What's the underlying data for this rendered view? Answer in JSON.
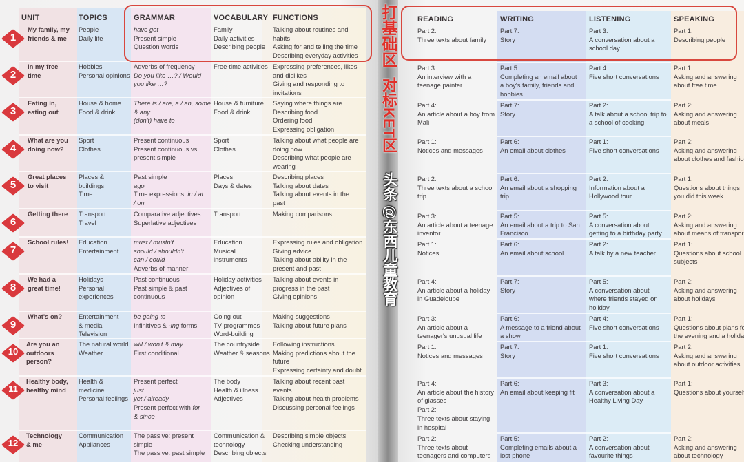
{
  "left_page": {
    "headers": {
      "unit": "UNIT",
      "topics": "TOPICS",
      "grammar": "GRAMMAR",
      "vocabulary": "VOCABULARY",
      "functions": "FUNCTIONS"
    },
    "units": [
      {
        "number": "1",
        "title": [
          "My family, my",
          "friends & me"
        ],
        "topics": [
          "People",
          "Daily life"
        ],
        "grammar": [
          [
            {
              "t": "have got",
              "em": true
            }
          ],
          "Present simple",
          "Question words"
        ],
        "vocabulary": [
          "Family",
          "Daily activities",
          "Describing people"
        ],
        "functions": [
          "Talking about routines and",
          "habits",
          "Asking for and telling the time",
          "Describing everyday activities"
        ]
      },
      {
        "number": "2",
        "title": [
          "In my free",
          "time"
        ],
        "topics": [
          "Hobbies",
          "Personal opinions"
        ],
        "grammar": [
          "Adverbs of frequency",
          [
            {
              "t": "Do you like …? / Would",
              "em": true
            }
          ],
          [
            {
              "t": "you like …?",
              "em": true
            }
          ]
        ],
        "vocabulary": [
          "Free-time activities"
        ],
        "functions": [
          "Expressing preferences, likes",
          "and dislikes",
          "Giving and responding to",
          "invitations"
        ]
      },
      {
        "number": "3",
        "title": [
          "Eating in,",
          "eating out"
        ],
        "topics": [
          "House & home",
          "Food & drink"
        ],
        "grammar": [
          [
            {
              "t": "There is / are, a / an, some",
              "em": true
            }
          ],
          [
            {
              "t": "& any",
              "em": true
            }
          ],
          [
            {
              "t": "(don't) have to",
              "em": true
            }
          ]
        ],
        "vocabulary": [
          "House & furniture",
          "Food & drink"
        ],
        "functions": [
          "Saying where things are",
          "Describing food",
          "Ordering food",
          "Expressing obligation"
        ]
      },
      {
        "number": "4",
        "title": [
          "What are you",
          "doing now?"
        ],
        "topics": [
          "Sport",
          "Clothes"
        ],
        "grammar": [
          "Present continuous",
          "Present continuous vs",
          "present simple"
        ],
        "vocabulary": [
          "Sport",
          "Clothes"
        ],
        "functions": [
          "Talking about what people are",
          "doing now",
          "Describing what people are",
          "wearing"
        ]
      },
      {
        "number": "5",
        "title": [
          "Great places",
          "to visit"
        ],
        "topics": [
          "Places &",
          "buildings",
          "Time"
        ],
        "grammar": [
          "Past simple",
          [
            {
              "t": "ago",
              "em": true
            }
          ],
          [
            {
              "t": "Time expressions: "
            },
            {
              "t": "in / at",
              "em": true
            }
          ],
          [
            {
              "t": "/ on",
              "em": true
            }
          ]
        ],
        "vocabulary": [
          "Places",
          "Days & dates"
        ],
        "functions": [
          "Describing places",
          "Talking about dates",
          "Talking about events in the",
          "past"
        ]
      },
      {
        "number": "6",
        "title": [
          "Getting there"
        ],
        "topics": [
          "Transport",
          "Travel"
        ],
        "grammar": [
          "Comparative adjectives",
          "Superlative adjectives"
        ],
        "vocabulary": [
          "Transport"
        ],
        "functions": [
          "Making comparisons"
        ]
      },
      {
        "number": "7",
        "title": [
          "School rules!"
        ],
        "topics": [
          "Education",
          "Entertainment"
        ],
        "grammar": [
          [
            {
              "t": "must / mustn't",
              "em": true
            }
          ],
          [
            {
              "t": "should / shouldn't",
              "em": true
            }
          ],
          [
            {
              "t": "can / could",
              "em": true
            }
          ],
          "Adverbs of manner"
        ],
        "vocabulary": [
          "Education",
          "Musical",
          "instruments"
        ],
        "functions": [
          "Expressing rules and obligation",
          "Giving advice",
          "Talking about ability in the",
          "present and past"
        ]
      },
      {
        "number": "8",
        "title": [
          "We had a",
          "great time!"
        ],
        "topics": [
          "Holidays",
          "Personal",
          "experiences"
        ],
        "grammar": [
          "Past continuous",
          "Past simple & past",
          "continuous"
        ],
        "vocabulary": [
          "Holiday activities",
          "Adjectives of",
          "opinion"
        ],
        "functions": [
          "Talking about events in",
          "progress in the past",
          "Giving opinions"
        ]
      },
      {
        "number": "9",
        "title": [
          "What's on?"
        ],
        "topics": [
          "Entertainment",
          "& media",
          "Television"
        ],
        "grammar": [
          [
            {
              "t": "be going to",
              "em": true
            }
          ],
          [
            {
              "t": "Infinitives & "
            },
            {
              "t": "-ing",
              "em": true
            },
            {
              "t": " forms"
            }
          ]
        ],
        "vocabulary": [
          "Going out",
          "TV programmes",
          "Word-building"
        ],
        "functions": [
          "Making suggestions",
          "Talking about future plans"
        ]
      },
      {
        "number": "10",
        "title": [
          "Are you an",
          "outdoors",
          "person?"
        ],
        "topics": [
          "The natural world",
          "Weather"
        ],
        "grammar": [
          [
            {
              "t": "will / won't & may",
              "em": true
            }
          ],
          "First conditional"
        ],
        "vocabulary": [
          "The countryside",
          "Weather & seasons"
        ],
        "functions": [
          "Following instructions",
          "Making predictions about the",
          "future",
          "Expressing certainty and doubt"
        ]
      },
      {
        "number": "11",
        "title": [
          "Healthy body,",
          "healthy mind"
        ],
        "topics": [
          "Health &",
          "medicine",
          "Personal feelings"
        ],
        "grammar": [
          "Present perfect",
          [
            {
              "t": "just",
              "em": true
            }
          ],
          [
            {
              "t": "yet / already",
              "em": true
            }
          ],
          [
            {
              "t": "Present perfect with "
            },
            {
              "t": "for",
              "em": true
            }
          ],
          [
            {
              "t": "& since",
              "em": true
            }
          ]
        ],
        "vocabulary": [
          "The body",
          "Health & illness",
          "Adjectives"
        ],
        "functions": [
          "Talking about recent past",
          "events",
          "Talking about health problems",
          "Discussing personal feelings"
        ]
      },
      {
        "number": "12",
        "title": [
          "Technology",
          "& me"
        ],
        "topics": [
          "Communication",
          "Appliances"
        ],
        "grammar": [
          "The passive: present",
          "simple",
          "The passive: past simple"
        ],
        "vocabulary": [
          "Communication &",
          "technology",
          "Describing objects"
        ],
        "functions": [
          "Describing simple objects",
          "Checking understanding"
        ]
      }
    ]
  },
  "right_page": {
    "headers": {
      "reading": "READING",
      "writing": "WRITING",
      "listening": "LISTENING",
      "speaking": "SPEAKING"
    },
    "rows": [
      {
        "reading": [
          "Part 2:",
          "Three texts about family"
        ],
        "writing": [
          "Part 7:",
          "Story"
        ],
        "listening": [
          "Part 3:",
          "A conversation about a",
          "school day"
        ],
        "speaking": [
          "Part 1:",
          "Describing people"
        ]
      },
      {
        "reading": [
          "Part 3:",
          "An interview with a",
          "teenage painter"
        ],
        "writing": [
          "Part 5:",
          "Completing an email about",
          "a boy's family, friends and",
          "hobbies"
        ],
        "listening": [
          "Part 4:",
          "Five short conversations"
        ],
        "speaking": [
          "Part 1:",
          "Asking and answering",
          "about free time"
        ]
      },
      {
        "reading": [
          "Part 4:",
          "An article about a boy from",
          "Mali"
        ],
        "writing": [
          "Part 7:",
          "Story"
        ],
        "listening": [
          "Part 2:",
          "A talk about a school trip to",
          "a school of cooking"
        ],
        "speaking": [
          "Part 2:",
          "Asking and answering",
          "about meals"
        ]
      },
      {
        "reading": [
          "Part 1:",
          "Notices and messages"
        ],
        "writing": [
          "Part 6:",
          "An email about clothes"
        ],
        "listening": [
          "Part 1:",
          "Five short  conversations"
        ],
        "speaking": [
          "Part 2:",
          "Asking and answering",
          "about clothes and fashio"
        ]
      },
      {
        "reading": [
          "Part 2:",
          "Three texts about a school",
          "trip"
        ],
        "writing": [
          "Part 6:",
          "An email about a shopping",
          "trip"
        ],
        "listening": [
          "Part 2:",
          "Information about a",
          "Hollywood tour"
        ],
        "speaking": [
          "Part 1:",
          "Questions about things",
          "you did this week"
        ]
      },
      {
        "reading": [
          "Part 3:",
          "An article about a teenage",
          "inventor"
        ],
        "writing": [
          "Part 5:",
          "An email about a trip to San",
          "Francisco"
        ],
        "listening": [
          "Part 5:",
          "A conversation about",
          "getting to a birthday party"
        ],
        "speaking": [
          "Part 2:",
          "Asking and answering",
          "about means of transpor"
        ]
      },
      {
        "reading": [
          "Part 1:",
          "Notices"
        ],
        "writing": [
          "Part 6:",
          "An email about school"
        ],
        "listening": [
          "Part 2:",
          "A talk by a new teacher"
        ],
        "speaking": [
          "Part 1:",
          "Questions about school",
          "subjects"
        ]
      },
      {
        "reading": [
          "Part 4:",
          "An article about a holiday",
          "in Guadeloupe"
        ],
        "writing": [
          "Part 7:",
          "Story"
        ],
        "listening": [
          "Part 5:",
          "A conversation about",
          "where friends stayed on",
          "holiday"
        ],
        "speaking": [
          "Part 2:",
          "Asking and answering",
          "about holidays"
        ]
      },
      {
        "reading": [
          "Part 3:",
          "An article about a",
          "teenager's unusual life"
        ],
        "writing": [
          "Part 6:",
          "A message to a friend about",
          "a show"
        ],
        "listening": [
          "Part 4:",
          "Five short conversations"
        ],
        "speaking": [
          "Part 1:",
          "Questions about plans fo",
          "the evening and a holida"
        ]
      },
      {
        "reading": [
          "Part 1:",
          "Notices and messages"
        ],
        "writing": [
          "Part 7:",
          "Story"
        ],
        "listening": [
          "Part 1:",
          "Five short conversations"
        ],
        "speaking": [
          "Part 2:",
          "Asking and answering",
          "about outdoor activities"
        ]
      },
      {
        "reading": [
          "Part 4:",
          "An article about the history",
          "of glasses",
          "Part 2:",
          "Three texts about staying",
          "in hospital"
        ],
        "writing": [
          "Part 6:",
          "An email about keeping fit"
        ],
        "listening": [
          "Part 3:",
          "A conversation about a",
          "Healthy Living Day"
        ],
        "speaking": [
          "Part 1:",
          "Questions about yourself"
        ]
      },
      {
        "reading": [
          "Part 2:",
          "Three texts about",
          "teenagers and computers"
        ],
        "writing": [
          "Part 5:",
          "Completing emails about a",
          "lost phone"
        ],
        "listening": [
          "Part 2:",
          "A conversation about",
          "favourite things"
        ],
        "speaking": [
          "Part 2:",
          "Asking and answering",
          "about technology"
        ]
      }
    ]
  },
  "annotations": {
    "left_label": "打基础区",
    "right_label": "对标KET区",
    "watermark": "头条 @东西儿童教育"
  },
  "colors": {
    "badge": "#d9393d",
    "annotation": "#e0302a",
    "topics_band": "#d6e6f5",
    "grammar_band": "#f5e3ee",
    "writing_band": "#d3dcf2"
  }
}
